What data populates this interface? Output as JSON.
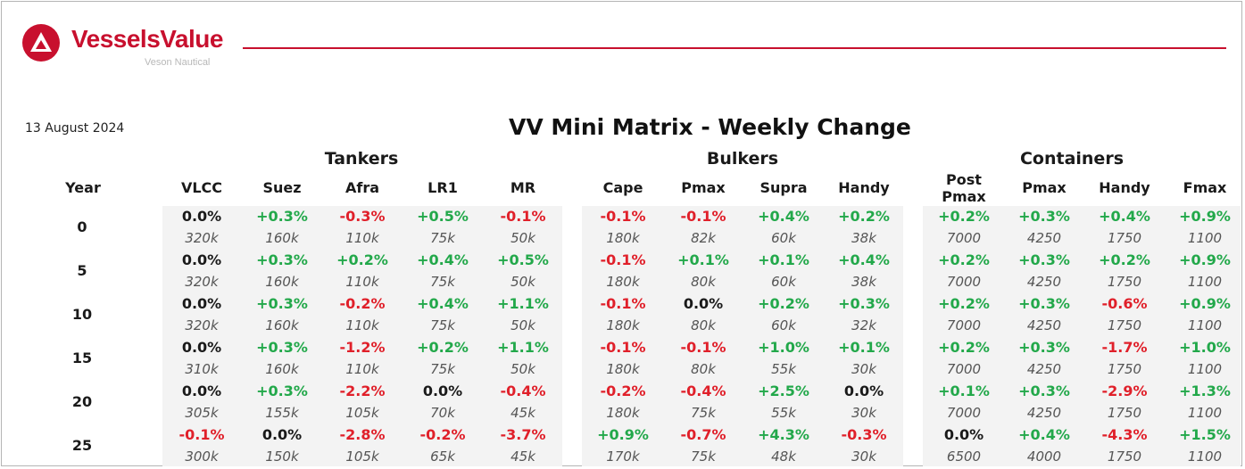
{
  "brand": {
    "name": "VesselsValue",
    "sub": "Veson Nautical",
    "accent": "#c8102e"
  },
  "date": "13 August 2024",
  "title": "VV Mini Matrix - Weekly Change",
  "groups": {
    "tankers": "Tankers",
    "bulkers": "Bulkers",
    "containers": "Containers"
  },
  "year_label": "Year",
  "columns": [
    "VLCC",
    "Suez",
    "Afra",
    "LR1",
    "MR",
    "Cape",
    "Pmax",
    "Supra",
    "Handy",
    "Post Pmax",
    "Pmax",
    "Handy",
    "Fmax"
  ],
  "colors": {
    "positive": "#22a84a",
    "negative": "#e0202a",
    "neutral": "#1a1a1a"
  },
  "rows": [
    {
      "year": "0",
      "pct": [
        "0.0%",
        "+0.3%",
        "-0.3%",
        "+0.5%",
        "-0.1%",
        "-0.1%",
        "-0.1%",
        "+0.4%",
        "+0.2%",
        "+0.2%",
        "+0.3%",
        "+0.4%",
        "+0.9%"
      ],
      "size": [
        "320k",
        "160k",
        "110k",
        "75k",
        "50k",
        "180k",
        "82k",
        "60k",
        "38k",
        "7000",
        "4250",
        "1750",
        "1100"
      ]
    },
    {
      "year": "5",
      "pct": [
        "0.0%",
        "+0.3%",
        "+0.2%",
        "+0.4%",
        "+0.5%",
        "-0.1%",
        "+0.1%",
        "+0.1%",
        "+0.4%",
        "+0.2%",
        "+0.3%",
        "+0.2%",
        "+0.9%"
      ],
      "size": [
        "320k",
        "160k",
        "110k",
        "75k",
        "50k",
        "180k",
        "80k",
        "60k",
        "38k",
        "7000",
        "4250",
        "1750",
        "1100"
      ]
    },
    {
      "year": "10",
      "pct": [
        "0.0%",
        "+0.3%",
        "-0.2%",
        "+0.4%",
        "+1.1%",
        "-0.1%",
        "0.0%",
        "+0.2%",
        "+0.3%",
        "+0.2%",
        "+0.3%",
        "-0.6%",
        "+0.9%"
      ],
      "size": [
        "320k",
        "160k",
        "110k",
        "75k",
        "50k",
        "180k",
        "80k",
        "60k",
        "32k",
        "7000",
        "4250",
        "1750",
        "1100"
      ]
    },
    {
      "year": "15",
      "pct": [
        "0.0%",
        "+0.3%",
        "-1.2%",
        "+0.2%",
        "+1.1%",
        "-0.1%",
        "-0.1%",
        "+1.0%",
        "+0.1%",
        "+0.2%",
        "+0.3%",
        "-1.7%",
        "+1.0%"
      ],
      "size": [
        "310k",
        "160k",
        "110k",
        "75k",
        "50k",
        "180k",
        "80k",
        "55k",
        "30k",
        "7000",
        "4250",
        "1750",
        "1100"
      ]
    },
    {
      "year": "20",
      "pct": [
        "0.0%",
        "+0.3%",
        "-2.2%",
        "0.0%",
        "-0.4%",
        "-0.2%",
        "-0.4%",
        "+2.5%",
        "0.0%",
        "+0.1%",
        "+0.3%",
        "-2.9%",
        "+1.3%"
      ],
      "size": [
        "305k",
        "155k",
        "105k",
        "70k",
        "45k",
        "180k",
        "75k",
        "55k",
        "30k",
        "7000",
        "4250",
        "1750",
        "1100"
      ]
    },
    {
      "year": "25",
      "pct": [
        "-0.1%",
        "0.0%",
        "-2.8%",
        "-0.2%",
        "-3.7%",
        "+0.9%",
        "-0.7%",
        "+4.3%",
        "-0.3%",
        "0.0%",
        "+0.4%",
        "-4.3%",
        "+1.5%"
      ],
      "size": [
        "300k",
        "150k",
        "105k",
        "65k",
        "45k",
        "170k",
        "75k",
        "48k",
        "30k",
        "6500",
        "4000",
        "1750",
        "1100"
      ]
    }
  ]
}
